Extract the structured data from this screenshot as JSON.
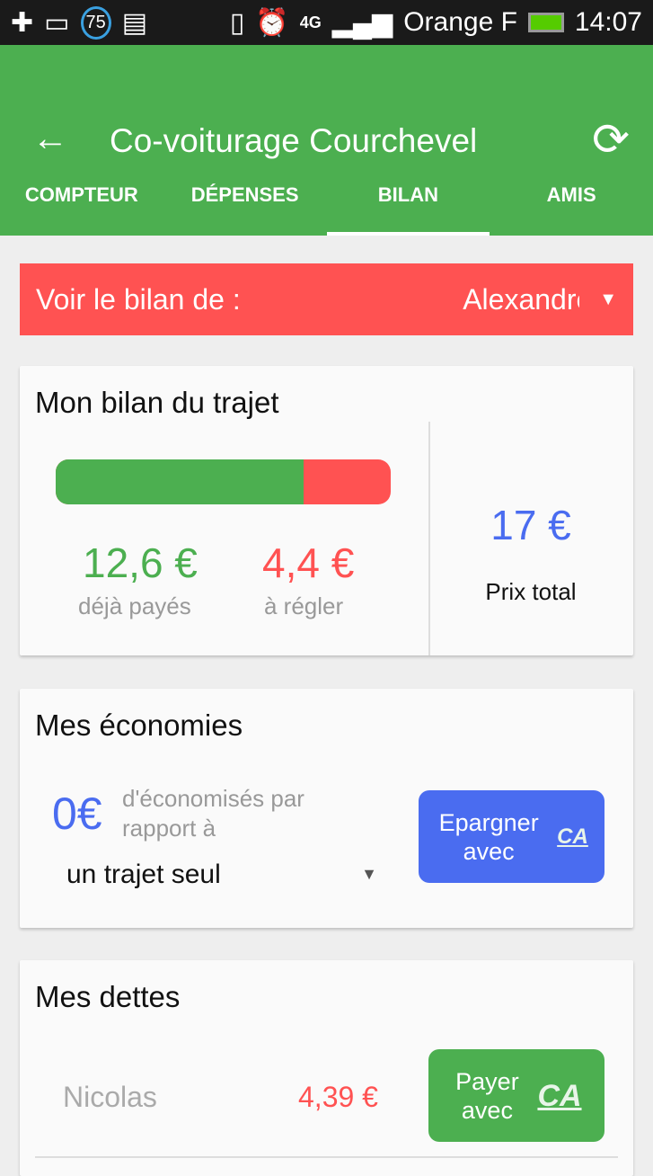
{
  "status": {
    "battery_pct": "75",
    "carrier": "Orange F",
    "network": "4G",
    "time": "14:07"
  },
  "appbar": {
    "title": "Co-voiturage Courchevel"
  },
  "tabs": [
    {
      "label": "COMPTEUR"
    },
    {
      "label": "DÉPENSES"
    },
    {
      "label": "BILAN",
      "active": true
    },
    {
      "label": "AMIS"
    }
  ],
  "picker": {
    "label": "Voir le bilan de :",
    "value": "Alexandre"
  },
  "bilan": {
    "title": "Mon bilan du trajet",
    "paid": "12,6 €",
    "paid_label": "déjà payés",
    "due": "4,4 €",
    "due_label": "à régler",
    "total": "17 €",
    "total_label": "Prix total",
    "paid_fraction": 0.74
  },
  "economies": {
    "title": "Mes économies",
    "amount": "0€",
    "text": "d'économisés par rapport à",
    "compare_value": "un trajet seul",
    "button": "Epargner avec"
  },
  "dettes": {
    "title": "Mes dettes",
    "items": [
      {
        "name": "Nicolas",
        "amount": "4,39 €",
        "button": "Payer avec"
      }
    ]
  },
  "brand_logo": "CA",
  "colors": {
    "green": "#4caf50",
    "red": "#ff5252",
    "blue": "#4a6cf0"
  }
}
